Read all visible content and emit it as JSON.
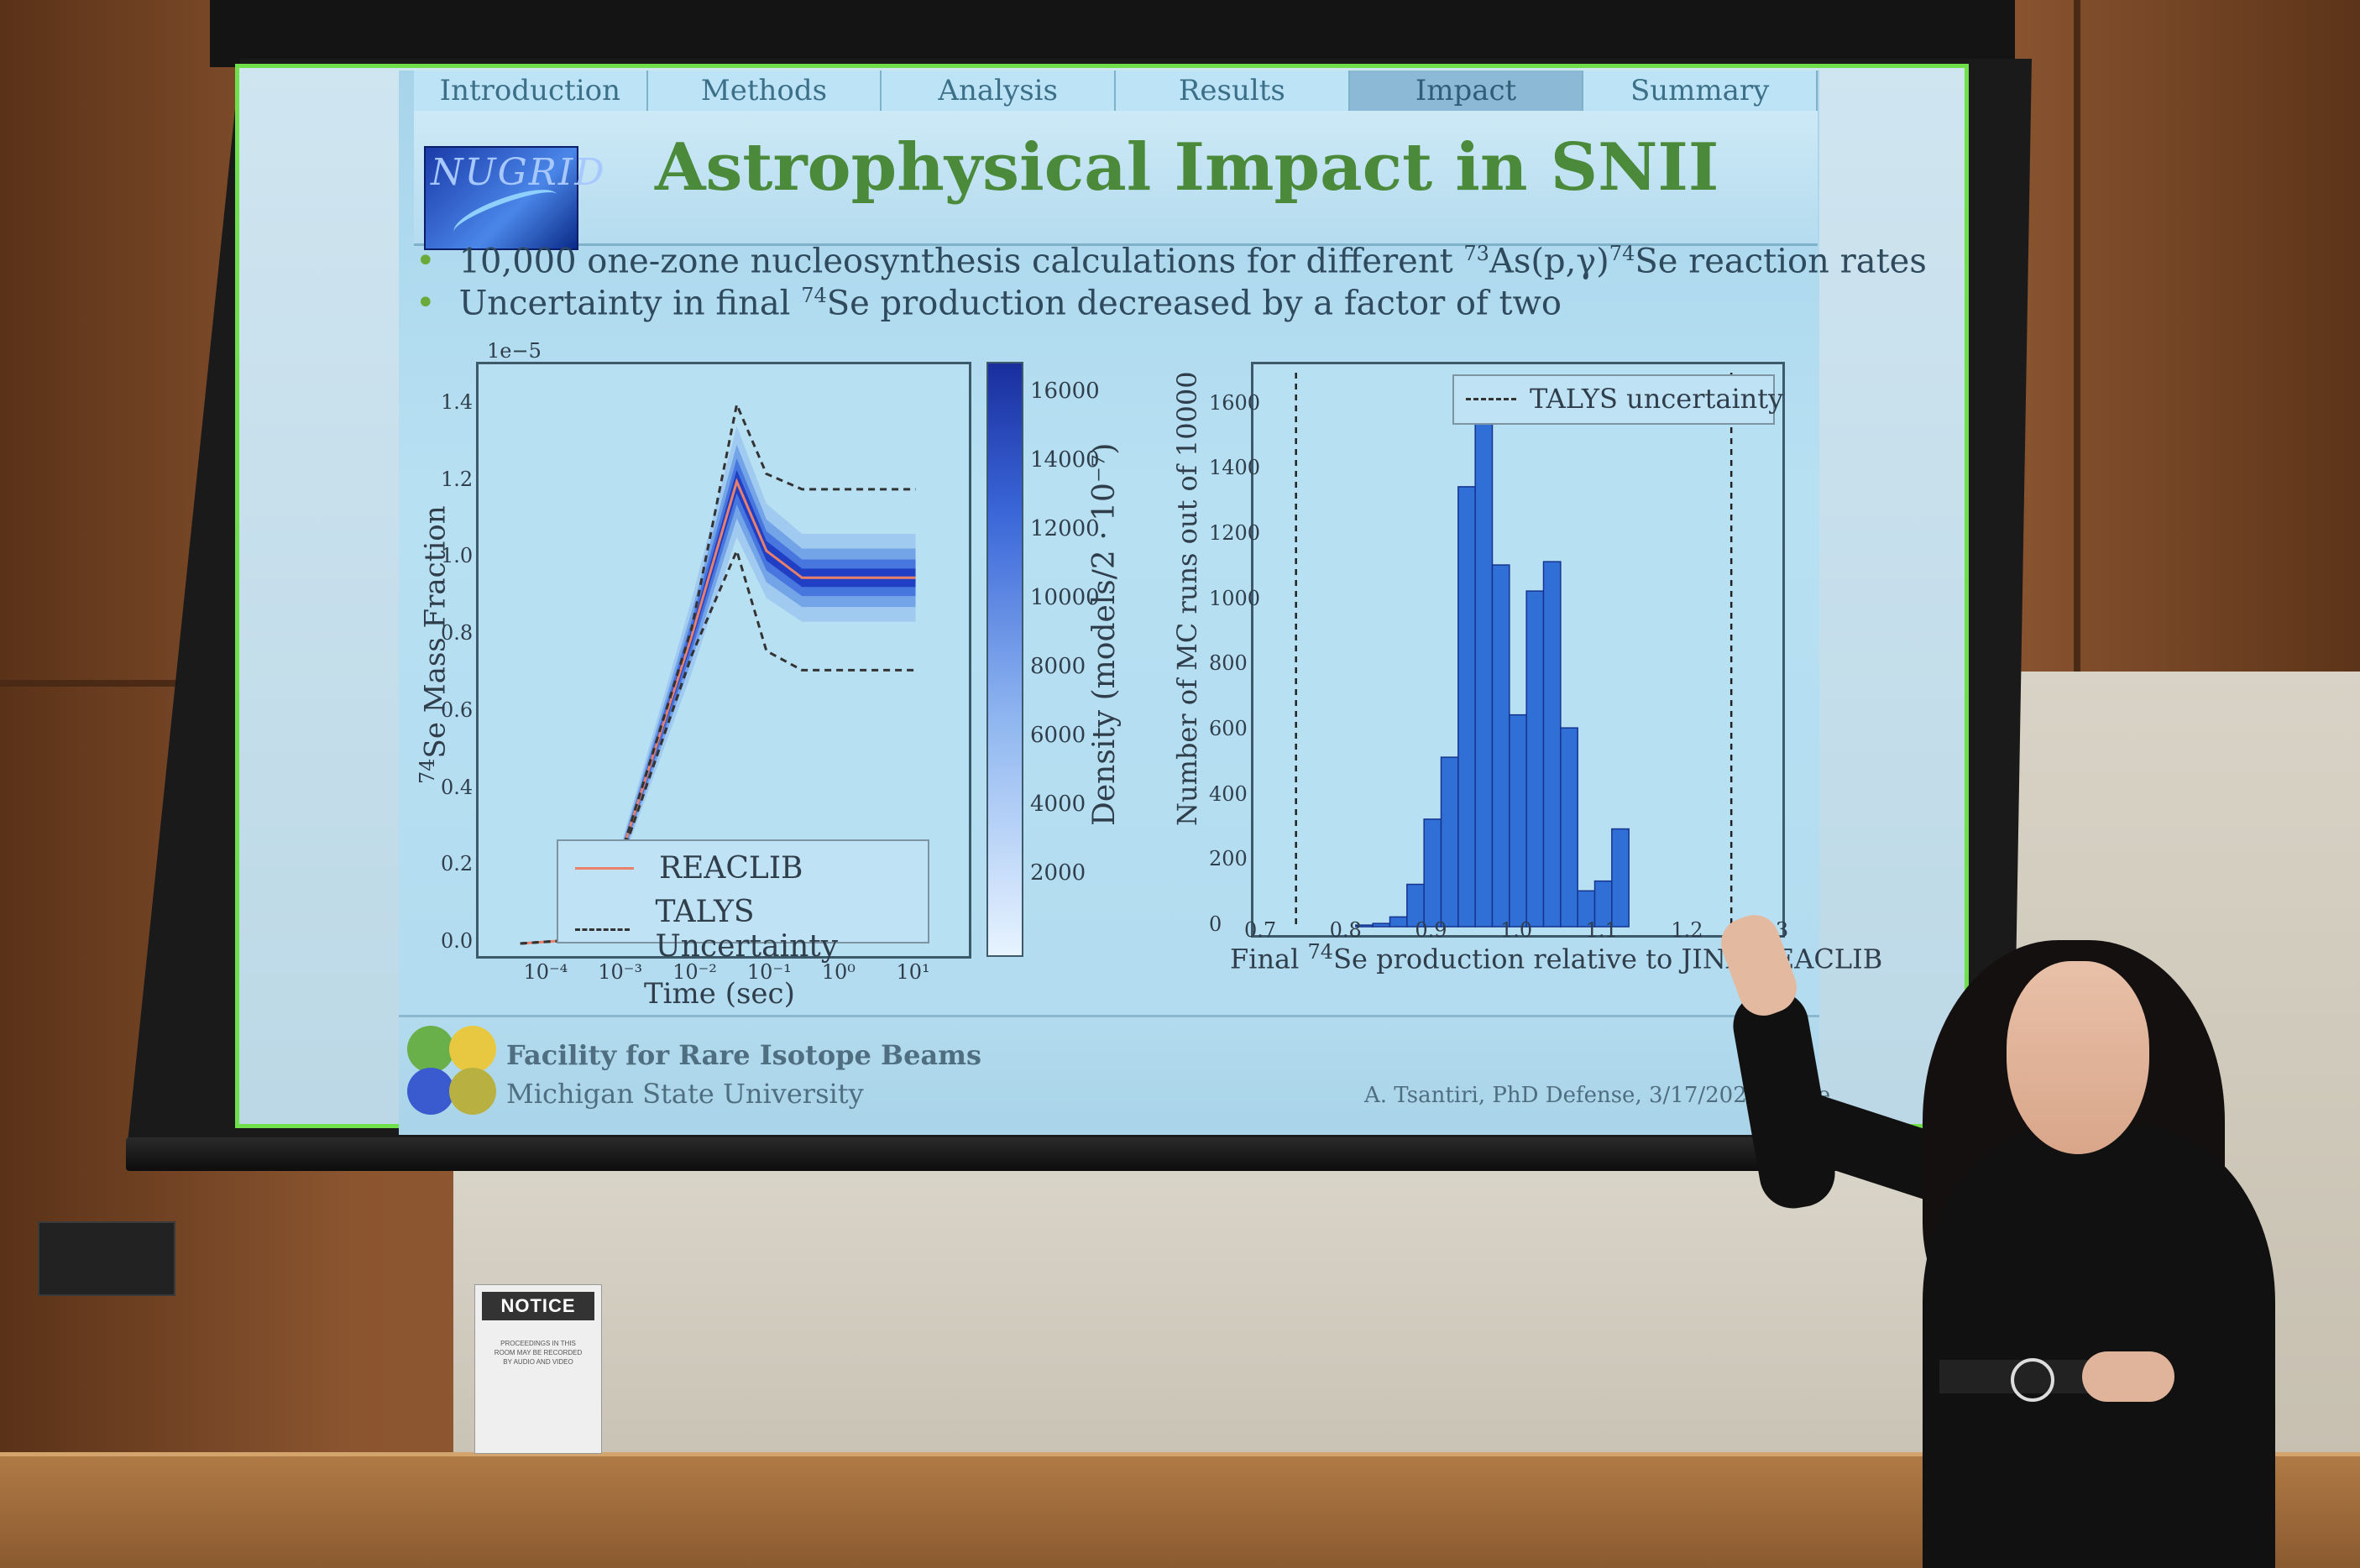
{
  "slide": {
    "tabs": [
      {
        "label": "Introduction"
      },
      {
        "label": "Methods"
      },
      {
        "label": "Analysis"
      },
      {
        "label": "Results"
      },
      {
        "label": "Impact",
        "active": true
      },
      {
        "label": "Summary"
      }
    ],
    "logo_text": "NUGRID",
    "title": "Astrophysical Impact in SNII",
    "bullet1_pre": "10,000 one-zone nucleosynthesis calculations for different ",
    "bullet1_sup1": "73",
    "bullet1_mid": "As(p,γ)",
    "bullet1_sup2": "74",
    "bullet1_post": "Se reaction rates",
    "bullet2_pre": "Uncertainty in final ",
    "bullet2_sup": "74",
    "bullet2_post": "Se production decreased by a factor of two",
    "footer_org1": "Facility for Rare Isotope Beams",
    "footer_org2": "Michigan State University",
    "footer_cite": "A. Tsantiri, PhD Defense, 3/17/2025, Slide"
  },
  "chart_data": [
    {
      "type": "line",
      "y_multiplier_label": "1e−5",
      "ylabel_sup": "74",
      "ylabel": "Se Mass Fraction",
      "xlabel": "Time (sec)",
      "xscale": "log",
      "x_ticks": [
        "10⁻⁴",
        "10⁻³",
        "10⁻²",
        "10⁻¹",
        "10⁰",
        "10¹"
      ],
      "y_ticks": [
        "0.0",
        "0.2",
        "0.4",
        "0.6",
        "0.8",
        "1.0",
        "1.2",
        "1.4"
      ],
      "ylim": [
        0,
        1.45
      ],
      "series": [
        {
          "name": "REACLIB",
          "style": "solid",
          "color": "#e8806a",
          "x": [
            5e-05,
            0.0003,
            0.001,
            0.01,
            0.04,
            0.1,
            0.3,
            1,
            10
          ],
          "y": [
            0.0,
            0.01,
            0.2,
            0.8,
            1.2,
            1.02,
            0.95,
            0.95,
            0.95
          ]
        },
        {
          "name": "TALYS Uncertainty",
          "style": "dashed",
          "color": "#333333",
          "x": [
            5e-05,
            0.0003,
            0.001,
            0.01,
            0.04,
            0.1,
            0.3,
            1,
            10
          ],
          "y": [
            0.0,
            0.01,
            0.2,
            0.82,
            1.4,
            1.22,
            1.18,
            1.18,
            1.18
          ]
        },
        {
          "name": "",
          "style": "dashed",
          "color": "#333333",
          "x": [
            5e-05,
            0.0003,
            0.001,
            0.01,
            0.04,
            0.1,
            0.3,
            1,
            10
          ],
          "y": [
            0.0,
            0.01,
            0.19,
            0.75,
            1.02,
            0.76,
            0.71,
            0.71,
            0.71
          ]
        }
      ],
      "colorbar": {
        "label": "Density (models/2 · 10⁻⁷)",
        "ticks": [
          "16000",
          "14000",
          "12000",
          "10000",
          "8000",
          "6000",
          "4000",
          "2000"
        ]
      }
    },
    {
      "type": "bar",
      "title": "",
      "xlabel_pre": "Final ",
      "xlabel_sup": "74",
      "xlabel_post": "Se production relative to JINA-REACLIB",
      "ylabel": "Number of MC runs out of 10000",
      "x_ticks": [
        "0.7",
        "0.8",
        "0.9",
        "1.0",
        "1.1",
        "1.2",
        "1.3"
      ],
      "y_ticks": [
        "0",
        "200",
        "400",
        "600",
        "800",
        "1000",
        "1200",
        "1400",
        "1600"
      ],
      "xlim": [
        0.7,
        1.3
      ],
      "ylim": [
        0,
        1700
      ],
      "bin_width": 0.02,
      "bin_starts": [
        0.81,
        0.83,
        0.85,
        0.87,
        0.89,
        0.91,
        0.93,
        0.95,
        0.97,
        0.99,
        1.01,
        1.03,
        1.05,
        1.07,
        1.09,
        1.11
      ],
      "values": [
        5,
        10,
        30,
        130,
        330,
        520,
        1350,
        1620,
        1110,
        650,
        1030,
        1120,
        610,
        110,
        140,
        300
      ],
      "reference_lines": {
        "label": "TALYS uncertainty",
        "x": [
          0.74,
          1.25
        ]
      }
    }
  ],
  "room": {
    "notice_title": "NOTICE",
    "notice_body": "PROCEEDINGS IN THIS ROOM MAY BE RECORDED BY AUDIO AND VIDEO"
  }
}
